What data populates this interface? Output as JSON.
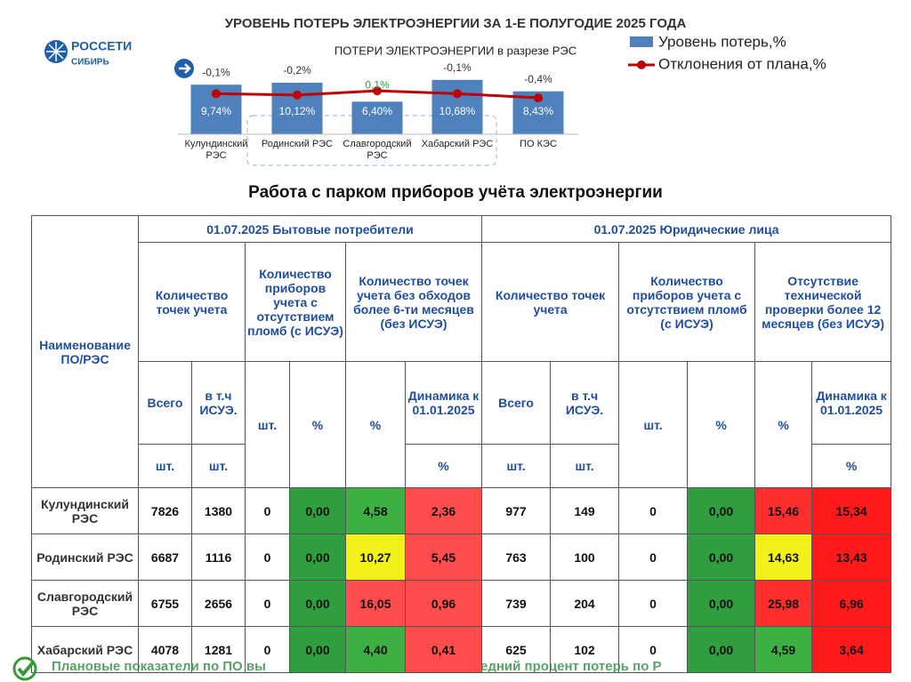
{
  "header": {
    "title": "УРОВЕНЬ ПОТЕРЬ ЭЛЕКТРОЭНЕРГИИ ЗА 1-Е ПОЛУГОДИЕ 2025 ГОДА",
    "logo": "РОССЕТИ",
    "logo_sub": "СИБИРЬ"
  },
  "chart_data": {
    "type": "bar",
    "title": "ПОТЕРИ ЭЛЕКТРОЭНЕРГИИ в разрезе РЭС",
    "categories": [
      "Кулундинский РЭС",
      "Родинский РЭС",
      "Славгородский РЭС",
      "Хабарский РЭС",
      "ПО КЭС"
    ],
    "ylim": [
      0,
      11
    ],
    "y2lim": [
      -3,
      1
    ],
    "series": [
      {
        "name": "Уровень потерь,%",
        "color": "#4f81bd",
        "values": [
          9.74,
          10.12,
          6.4,
          10.68,
          8.43
        ],
        "value_labels": [
          "9,74%",
          "10,12%",
          "6,40%",
          "10,68%",
          "8,43%"
        ]
      },
      {
        "name": "Отклонения от плана,%",
        "color": "#c00000",
        "axis": "y2",
        "values": [
          -0.1,
          -0.2,
          0.1,
          -0.1,
          -0.4
        ],
        "value_labels": [
          "-0,1%",
          "-0,2%",
          "0,1%",
          "-0,1%",
          "-0,4%"
        ],
        "positive_label_color": "#2e9e3e"
      }
    ]
  },
  "section_title": "Работа с парком приборов учёта электроэнергии",
  "table": {
    "header_rows": [
      [
        "Наименование ПО/РЭС",
        "01.07.2025 Бытовые потребители",
        "01.07.2025 Юридические лица"
      ],
      [
        "Количество точек учета",
        "Количество приборов учета с отсутствием пломб (с ИСУЭ)",
        "Количество точек учета без обходов более 6-ти месяцев (без ИСУЭ)",
        "Количество точек учета",
        "Количество приборов учета с отсутствием пломб (с ИСУЭ)",
        "Отсутствие технической проверки более 12 месяцев (без ИСУЭ)"
      ],
      [
        "Всего",
        "в т.ч ИСУЭ.",
        "шт.",
        "%",
        "%",
        "Динамика к 01.01.2025",
        "Всего",
        "в т.ч ИСУЭ.",
        "шт.",
        "%",
        "%",
        "Динамика к 01.01.2025"
      ],
      [
        "шт.",
        "шт.",
        "%",
        "шт.",
        "шт.",
        "%"
      ]
    ],
    "rows": [
      {
        "name": "Кулундинский РЭС",
        "cells": [
          "7826",
          "1380",
          "0",
          "0,00",
          "4,58",
          "2,36",
          "977",
          "149",
          "0",
          "0,00",
          "15,46",
          "15,34"
        ],
        "fills": [
          null,
          null,
          null,
          "#2e9e3e",
          "#3cb043",
          "#ff4d4d",
          null,
          null,
          null,
          "#2e9e3e",
          "#ff2d2d",
          "#ff1a1a"
        ]
      },
      {
        "name": "Родинский РЭС",
        "cells": [
          "6687",
          "1116",
          "0",
          "0,00",
          "10,27",
          "5,45",
          "763",
          "100",
          "0",
          "0,00",
          "14,63",
          "13,43"
        ],
        "fills": [
          null,
          null,
          null,
          "#2e9e3e",
          "#f2f21a",
          "#ff4d4d",
          null,
          null,
          null,
          "#2e9e3e",
          "#f2f21a",
          "#ff1a1a"
        ]
      },
      {
        "name": "Славгородский РЭС",
        "cells": [
          "6755",
          "2656",
          "0",
          "0,00",
          "16,05",
          "0,96",
          "739",
          "204",
          "0",
          "0,00",
          "25,98",
          "6,96"
        ],
        "fills": [
          null,
          null,
          null,
          "#2e9e3e",
          "#ff4d4d",
          "#ff4d4d",
          null,
          null,
          null,
          "#2e9e3e",
          "#ff2d2d",
          "#ff1a1a"
        ]
      },
      {
        "name": "Хабарский РЭС",
        "cells": [
          "4078",
          "1281",
          "0",
          "0,00",
          "4,40",
          "0,41",
          "625",
          "102",
          "0",
          "0,00",
          "4,59",
          "3,64"
        ],
        "fills": [
          null,
          null,
          null,
          "#2e9e3e",
          "#3cb043",
          "#ff4d4d",
          null,
          null,
          null,
          "#2e9e3e",
          "#3cb043",
          "#ff1a1a"
        ]
      }
    ]
  },
  "footer": {
    "parts": [
      "Плановые показатели по ПО вы",
      "едний процент потерь по Р"
    ]
  }
}
